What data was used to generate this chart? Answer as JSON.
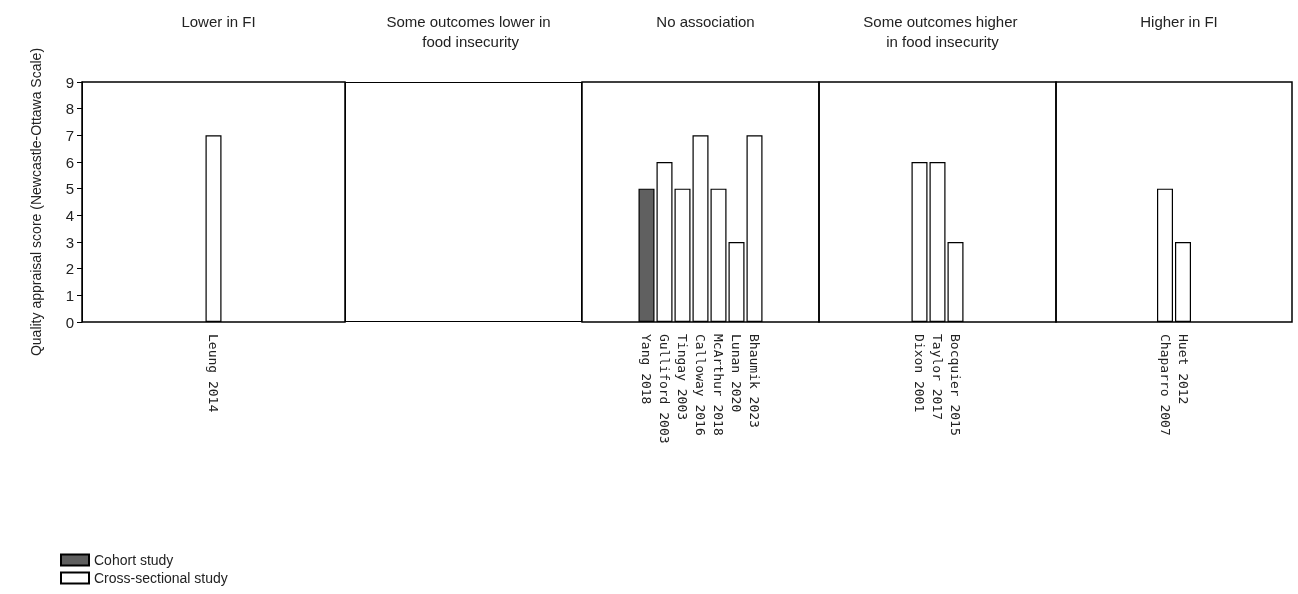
{
  "chart_data": [
    {
      "type": "bar",
      "title": "Lower in FI",
      "ylabel": "Quality appraisal score (Newcastle-Ottawa Scale)",
      "categories": [
        "Leung 2014"
      ],
      "series": [
        {
          "name": "Cohort study",
          "color": "#606060",
          "values": [
            null
          ]
        },
        {
          "name": "Cross-sectional study",
          "color": "#ffffff",
          "values": [
            7
          ]
        }
      ],
      "ylim": [
        0,
        9
      ],
      "yticks": [
        0,
        1,
        2,
        3,
        4,
        5,
        6,
        7,
        8,
        9
      ],
      "grid": false,
      "legend": "bottom left"
    },
    {
      "type": "other",
      "title": "Some outcomes lower in food insecurity"
    },
    {
      "type": "bar",
      "title": "No association",
      "categories": [
        "Yang 2018",
        "Gulliford 2003",
        "Tingay 2003",
        "Calloway 2016",
        "McArthur 2018",
        "Lunan 2020",
        "Bhaumik 2023"
      ],
      "series": [
        {
          "color": "#606060",
          "values": [
            5,
            null,
            null,
            null,
            null,
            null,
            null
          ]
        },
        {
          "color": "#ffffff",
          "values": [
            null,
            6,
            5,
            7,
            5,
            3,
            7
          ]
        }
      ],
      "ylim": [
        0,
        9
      ],
      "yticks": [
        0,
        1,
        2,
        3,
        4,
        5,
        6,
        7,
        8,
        9
      ],
      "grid": false,
      "tick_labels": "x"
    },
    {
      "type": "bar",
      "title": "Some outcomes higher in food insecurity",
      "categories": [
        "Dixon 2001",
        "Taylor 2017",
        "Bocquier 2015"
      ],
      "series": [
        {
          "color": "#606060",
          "values": [
            null,
            null,
            null
          ]
        },
        {
          "color": "#ffffff",
          "values": [
            6,
            6,
            3
          ]
        }
      ],
      "ylim": [
        0,
        9
      ],
      "yticks": [
        0,
        1,
        2,
        3,
        4,
        5,
        6,
        7,
        8,
        9
      ],
      "grid": false,
      "tick_labels": "x"
    },
    {
      "type": "bar",
      "title": "Higher in FI",
      "categories": [
        "Chaparro 2007",
        "Huet 2012"
      ],
      "series": [
        {
          "color": "#606060",
          "values": [
            null,
            null
          ]
        },
        {
          "color": "#ffffff",
          "values": [
            5,
            3
          ]
        }
      ],
      "ylim": [
        0,
        9
      ],
      "yticks": [
        0,
        1,
        2,
        3,
        4,
        5,
        6,
        7,
        8,
        9
      ],
      "grid": false,
      "tick_labels": "x"
    }
  ]
}
